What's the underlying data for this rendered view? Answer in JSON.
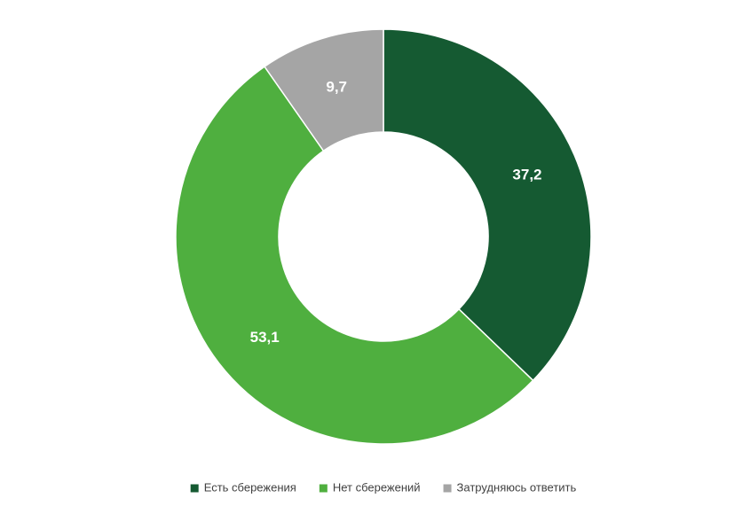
{
  "chart_data": {
    "type": "donut",
    "categories": [
      "Есть сбережения",
      "Нет сбережений",
      "Затрудняюсь ответить"
    ],
    "values": [
      37.2,
      53.1,
      9.7
    ],
    "value_labels": [
      "37,2",
      "53,1",
      "9,7"
    ],
    "colors": [
      "#155a32",
      "#4faf3f",
      "#a5a5a5"
    ],
    "legend": "bottom"
  }
}
